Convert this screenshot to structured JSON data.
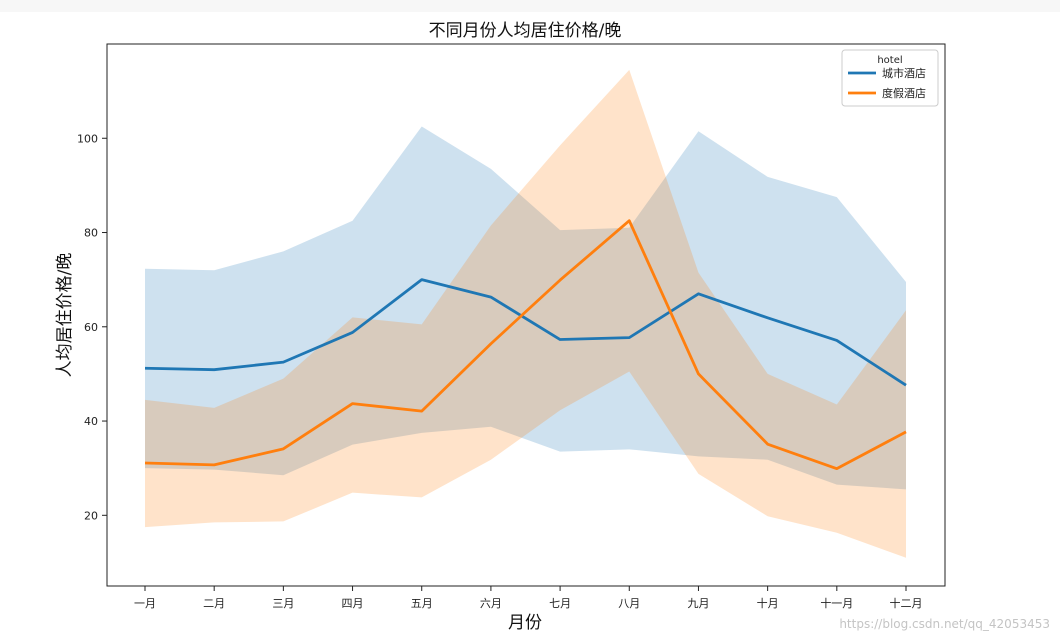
{
  "chart_data": {
    "type": "line",
    "title": "不同月份人均居住价格/晚",
    "xlabel": "月份",
    "ylabel": "人均居住价格/晚",
    "categories": [
      "一月",
      "二月",
      "三月",
      "四月",
      "五月",
      "六月",
      "七月",
      "八月",
      "九月",
      "十月",
      "十一月",
      "十二月"
    ],
    "ylim": [
      5,
      120
    ],
    "yticks": [
      20,
      40,
      60,
      80,
      100
    ],
    "grid": false,
    "legend": {
      "title": "hotel",
      "placement": "top-right"
    },
    "series": [
      {
        "name": "城市酒店",
        "color": "#1f77b4",
        "values": [
          51.2,
          50.9,
          52.5,
          58.8,
          70.0,
          66.3,
          57.3,
          57.7,
          67.0,
          61.9,
          57.1,
          47.6
        ],
        "upper": [
          72.3,
          72.0,
          76.0,
          82.5,
          102.5,
          93.5,
          80.5,
          81.0,
          101.5,
          91.8,
          87.5,
          69.5
        ],
        "lower": [
          30.0,
          29.7,
          28.5,
          35.0,
          37.5,
          38.8,
          33.5,
          34.0,
          32.5,
          31.8,
          26.5,
          25.5
        ]
      },
      {
        "name": "度假酒店",
        "color": "#ff7f0e",
        "values": [
          31.1,
          30.7,
          34.1,
          43.7,
          42.1,
          56.4,
          69.9,
          82.5,
          50.0,
          35.1,
          29.9,
          37.7
        ],
        "upper": [
          44.5,
          42.8,
          49.0,
          62.0,
          60.5,
          81.5,
          98.5,
          114.5,
          71.5,
          50.0,
          43.5,
          63.5
        ],
        "lower": [
          17.5,
          18.5,
          18.7,
          24.8,
          23.8,
          31.8,
          42.3,
          50.5,
          28.8,
          19.8,
          16.3,
          11.0
        ]
      }
    ]
  },
  "watermark": "https://blog.csdn.net/qq_42053453"
}
